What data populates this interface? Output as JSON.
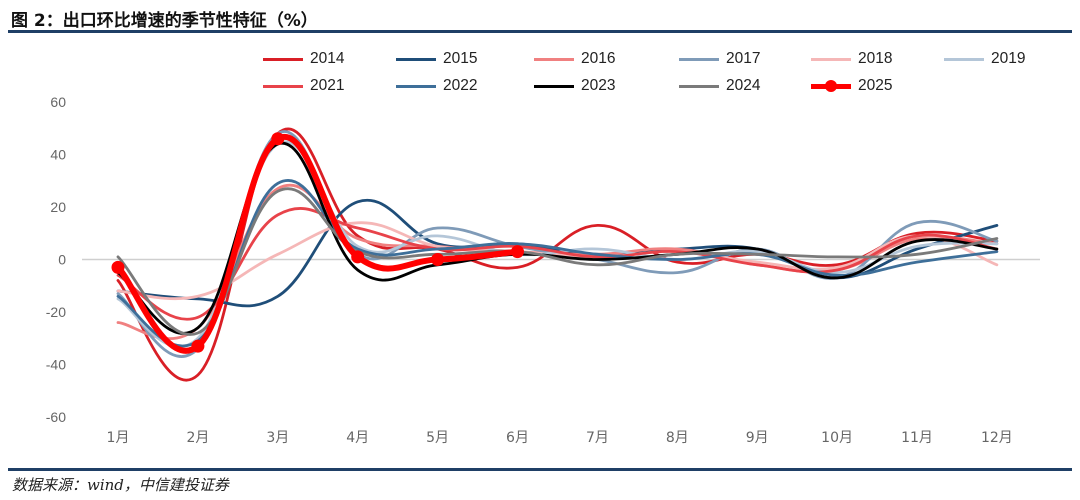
{
  "header": {
    "title": "图 2：出口环比增速的季节性特征（%）"
  },
  "footer": {
    "source": "数据来源：wind，中信建投证券"
  },
  "chart_data": {
    "type": "line",
    "title": "出口环比增速的季节性特征（%）",
    "xlabel": "",
    "ylabel": "",
    "categories": [
      "1月",
      "2月",
      "3月",
      "4月",
      "5月",
      "6月",
      "7月",
      "8月",
      "9月",
      "10月",
      "11月",
      "12月"
    ],
    "ylim": [
      -60,
      60
    ],
    "yticks": [
      -60,
      -40,
      -20,
      0,
      20,
      40,
      60
    ],
    "legend_position": "top-center",
    "series": [
      {
        "name": "2014",
        "color": "#d91f26",
        "width": 2.8,
        "values": [
          -8,
          -44,
          48,
          9,
          4,
          -3,
          13,
          -1,
          2,
          -2,
          10,
          7
        ]
      },
      {
        "name": "2015",
        "color": "#1f4e79",
        "width": 2.8,
        "values": [
          -12,
          -15,
          -14,
          22,
          6,
          6,
          2,
          4,
          4,
          -7,
          4,
          13
        ]
      },
      {
        "name": "2016",
        "color": "#f08080",
        "width": 2.8,
        "values": [
          -24,
          -26,
          27,
          8,
          5,
          3,
          2,
          4,
          -2,
          -4,
          8,
          6
        ]
      },
      {
        "name": "2017",
        "color": "#7f9bb8",
        "width": 2.8,
        "values": [
          -13,
          -34,
          48,
          2,
          12,
          5,
          0,
          -5,
          4,
          -7,
          14,
          7
        ]
      },
      {
        "name": "2018",
        "color": "#f5b7b7",
        "width": 2.8,
        "values": [
          -12,
          -14,
          2,
          14,
          5,
          3,
          1,
          3,
          -1,
          -3,
          9,
          -2
        ]
      },
      {
        "name": "2019",
        "color": "#b4c6d8",
        "width": 2.8,
        "values": [
          -15,
          -30,
          44,
          5,
          9,
          2,
          4,
          0,
          3,
          -5,
          5,
          6
        ]
      },
      {
        "name": "2021",
        "color": "#e8434a",
        "width": 2.8,
        "values": [
          -6,
          -22,
          17,
          12,
          4,
          5,
          1,
          3,
          -2,
          -4,
          9,
          4
        ]
      },
      {
        "name": "2022",
        "color": "#3e6f99",
        "width": 2.8,
        "values": [
          -14,
          -31,
          29,
          4,
          4,
          6,
          2,
          0,
          2,
          -6,
          -1,
          3
        ]
      },
      {
        "name": "2023",
        "color": "#000000",
        "width": 2.8,
        "values": [
          -5,
          -26,
          44,
          -4,
          -2,
          2,
          0,
          2,
          4,
          -7,
          7,
          4
        ]
      },
      {
        "name": "2024",
        "color": "#7a7a7a",
        "width": 2.8,
        "values": [
          1,
          -28,
          26,
          3,
          2,
          3,
          -2,
          2,
          2,
          1,
          2,
          8
        ]
      },
      {
        "name": "2025",
        "color": "#ff0000",
        "width": 6,
        "markers": true,
        "values": [
          -3,
          -33,
          46,
          1,
          0,
          3,
          null,
          null,
          null,
          null,
          null,
          null
        ]
      }
    ]
  }
}
